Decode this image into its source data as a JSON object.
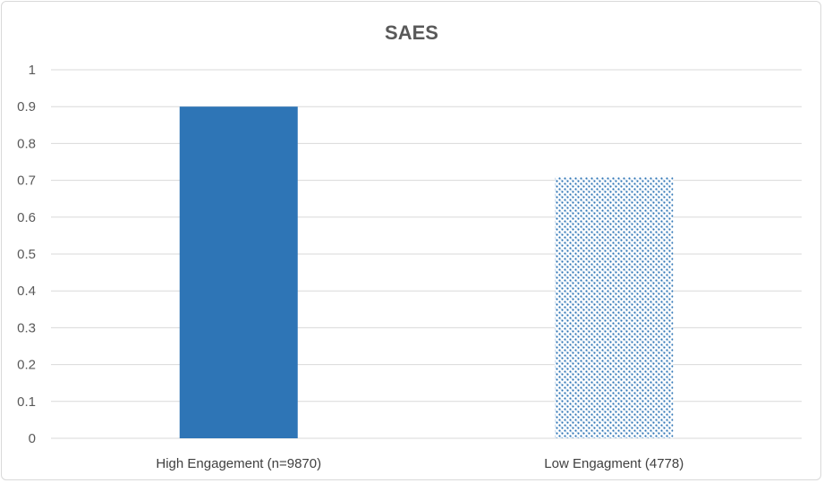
{
  "chart_data": {
    "type": "bar",
    "title": "SAES",
    "xlabel": "",
    "ylabel": "",
    "categories": [
      "High Engagement (n=9870)",
      "Low Engagment (4778)"
    ],
    "values": [
      0.9,
      0.71
    ],
    "ylim": [
      0,
      1
    ],
    "yticks": [
      "0",
      "0.1",
      "0.2",
      "0.3",
      "0.4",
      "0.5",
      "0.6",
      "0.7",
      "0.8",
      "0.9",
      "1"
    ],
    "grid": true,
    "legend": "none",
    "colors": [
      "#2e75b6",
      "#2e75b6"
    ],
    "fills": [
      "solid",
      "pattern"
    ]
  }
}
